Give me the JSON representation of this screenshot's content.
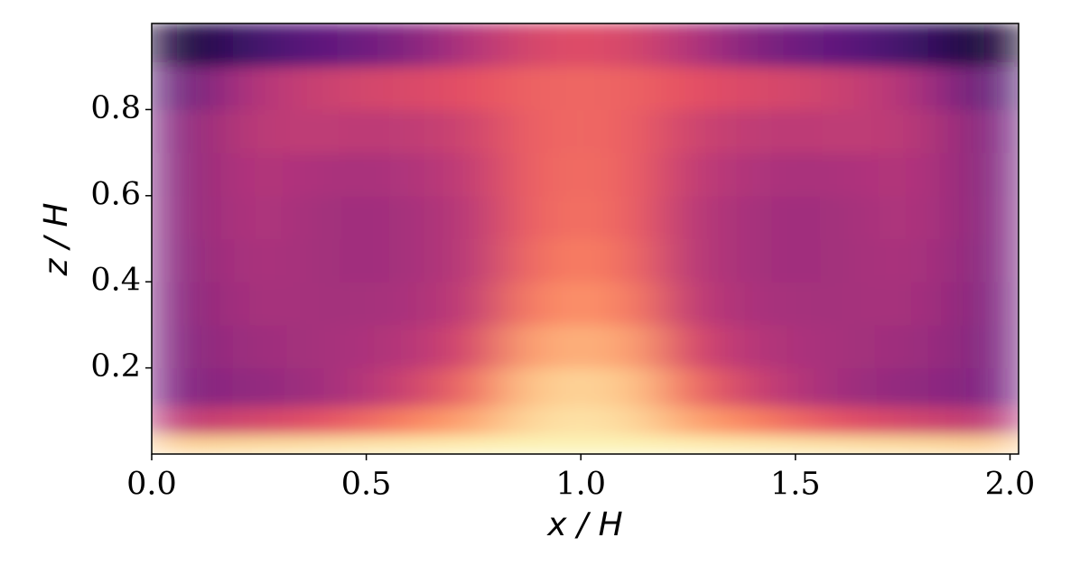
{
  "chart_data": {
    "type": "heatmap",
    "colormap": "magma",
    "xlabel": "x / H",
    "ylabel": "z / H",
    "xlim": [
      0,
      2.02
    ],
    "ylim": [
      0,
      1.0
    ],
    "xticks": [
      {
        "value": 0,
        "label": "0.0"
      },
      0.5,
      {
        "value": 1,
        "label": "1.0"
      },
      1.5,
      {
        "value": 2,
        "label": "2.0"
      }
    ],
    "yticks": [
      0.2,
      0.4,
      0.6,
      0.8
    ],
    "x": [
      0,
      0.125,
      0.25,
      0.375,
      0.5,
      0.625,
      0.75,
      0.875,
      1.0,
      1.125,
      1.25,
      1.375,
      1.5,
      1.625,
      1.75,
      1.875,
      2.0
    ],
    "y": [
      0.02,
      0.07,
      0.15,
      0.25,
      0.35,
      0.45,
      0.55,
      0.65,
      0.75,
      0.85,
      0.95
    ],
    "values": [
      [
        0.9,
        0.92,
        0.93,
        0.94,
        0.95,
        0.96,
        0.97,
        0.98,
        0.98,
        0.98,
        0.97,
        0.96,
        0.95,
        0.94,
        0.93,
        0.92,
        0.9
      ],
      [
        0.5,
        0.55,
        0.58,
        0.62,
        0.68,
        0.75,
        0.82,
        0.92,
        0.95,
        0.92,
        0.82,
        0.75,
        0.68,
        0.62,
        0.58,
        0.55,
        0.5
      ],
      [
        0.33,
        0.4,
        0.42,
        0.45,
        0.5,
        0.58,
        0.7,
        0.88,
        0.92,
        0.88,
        0.7,
        0.58,
        0.5,
        0.45,
        0.42,
        0.4,
        0.33
      ],
      [
        0.32,
        0.42,
        0.45,
        0.46,
        0.48,
        0.51,
        0.6,
        0.8,
        0.85,
        0.8,
        0.6,
        0.51,
        0.48,
        0.46,
        0.45,
        0.42,
        0.32
      ],
      [
        0.32,
        0.43,
        0.47,
        0.46,
        0.46,
        0.48,
        0.54,
        0.72,
        0.78,
        0.72,
        0.54,
        0.48,
        0.46,
        0.46,
        0.47,
        0.43,
        0.32
      ],
      [
        0.33,
        0.44,
        0.48,
        0.46,
        0.45,
        0.47,
        0.52,
        0.68,
        0.74,
        0.68,
        0.52,
        0.47,
        0.45,
        0.46,
        0.48,
        0.44,
        0.33
      ],
      [
        0.33,
        0.45,
        0.49,
        0.46,
        0.45,
        0.47,
        0.52,
        0.66,
        0.71,
        0.66,
        0.52,
        0.47,
        0.45,
        0.46,
        0.49,
        0.45,
        0.33
      ],
      [
        0.32,
        0.45,
        0.5,
        0.48,
        0.47,
        0.49,
        0.54,
        0.66,
        0.7,
        0.66,
        0.54,
        0.49,
        0.47,
        0.48,
        0.5,
        0.45,
        0.32
      ],
      [
        0.3,
        0.45,
        0.52,
        0.53,
        0.52,
        0.53,
        0.57,
        0.66,
        0.69,
        0.66,
        0.57,
        0.53,
        0.52,
        0.53,
        0.52,
        0.45,
        0.3
      ],
      [
        0.22,
        0.38,
        0.5,
        0.55,
        0.58,
        0.6,
        0.63,
        0.67,
        0.68,
        0.67,
        0.63,
        0.6,
        0.58,
        0.55,
        0.5,
        0.38,
        0.22
      ],
      [
        0.05,
        0.15,
        0.22,
        0.28,
        0.33,
        0.4,
        0.5,
        0.58,
        0.62,
        0.58,
        0.5,
        0.4,
        0.33,
        0.28,
        0.22,
        0.15,
        0.05
      ]
    ]
  }
}
